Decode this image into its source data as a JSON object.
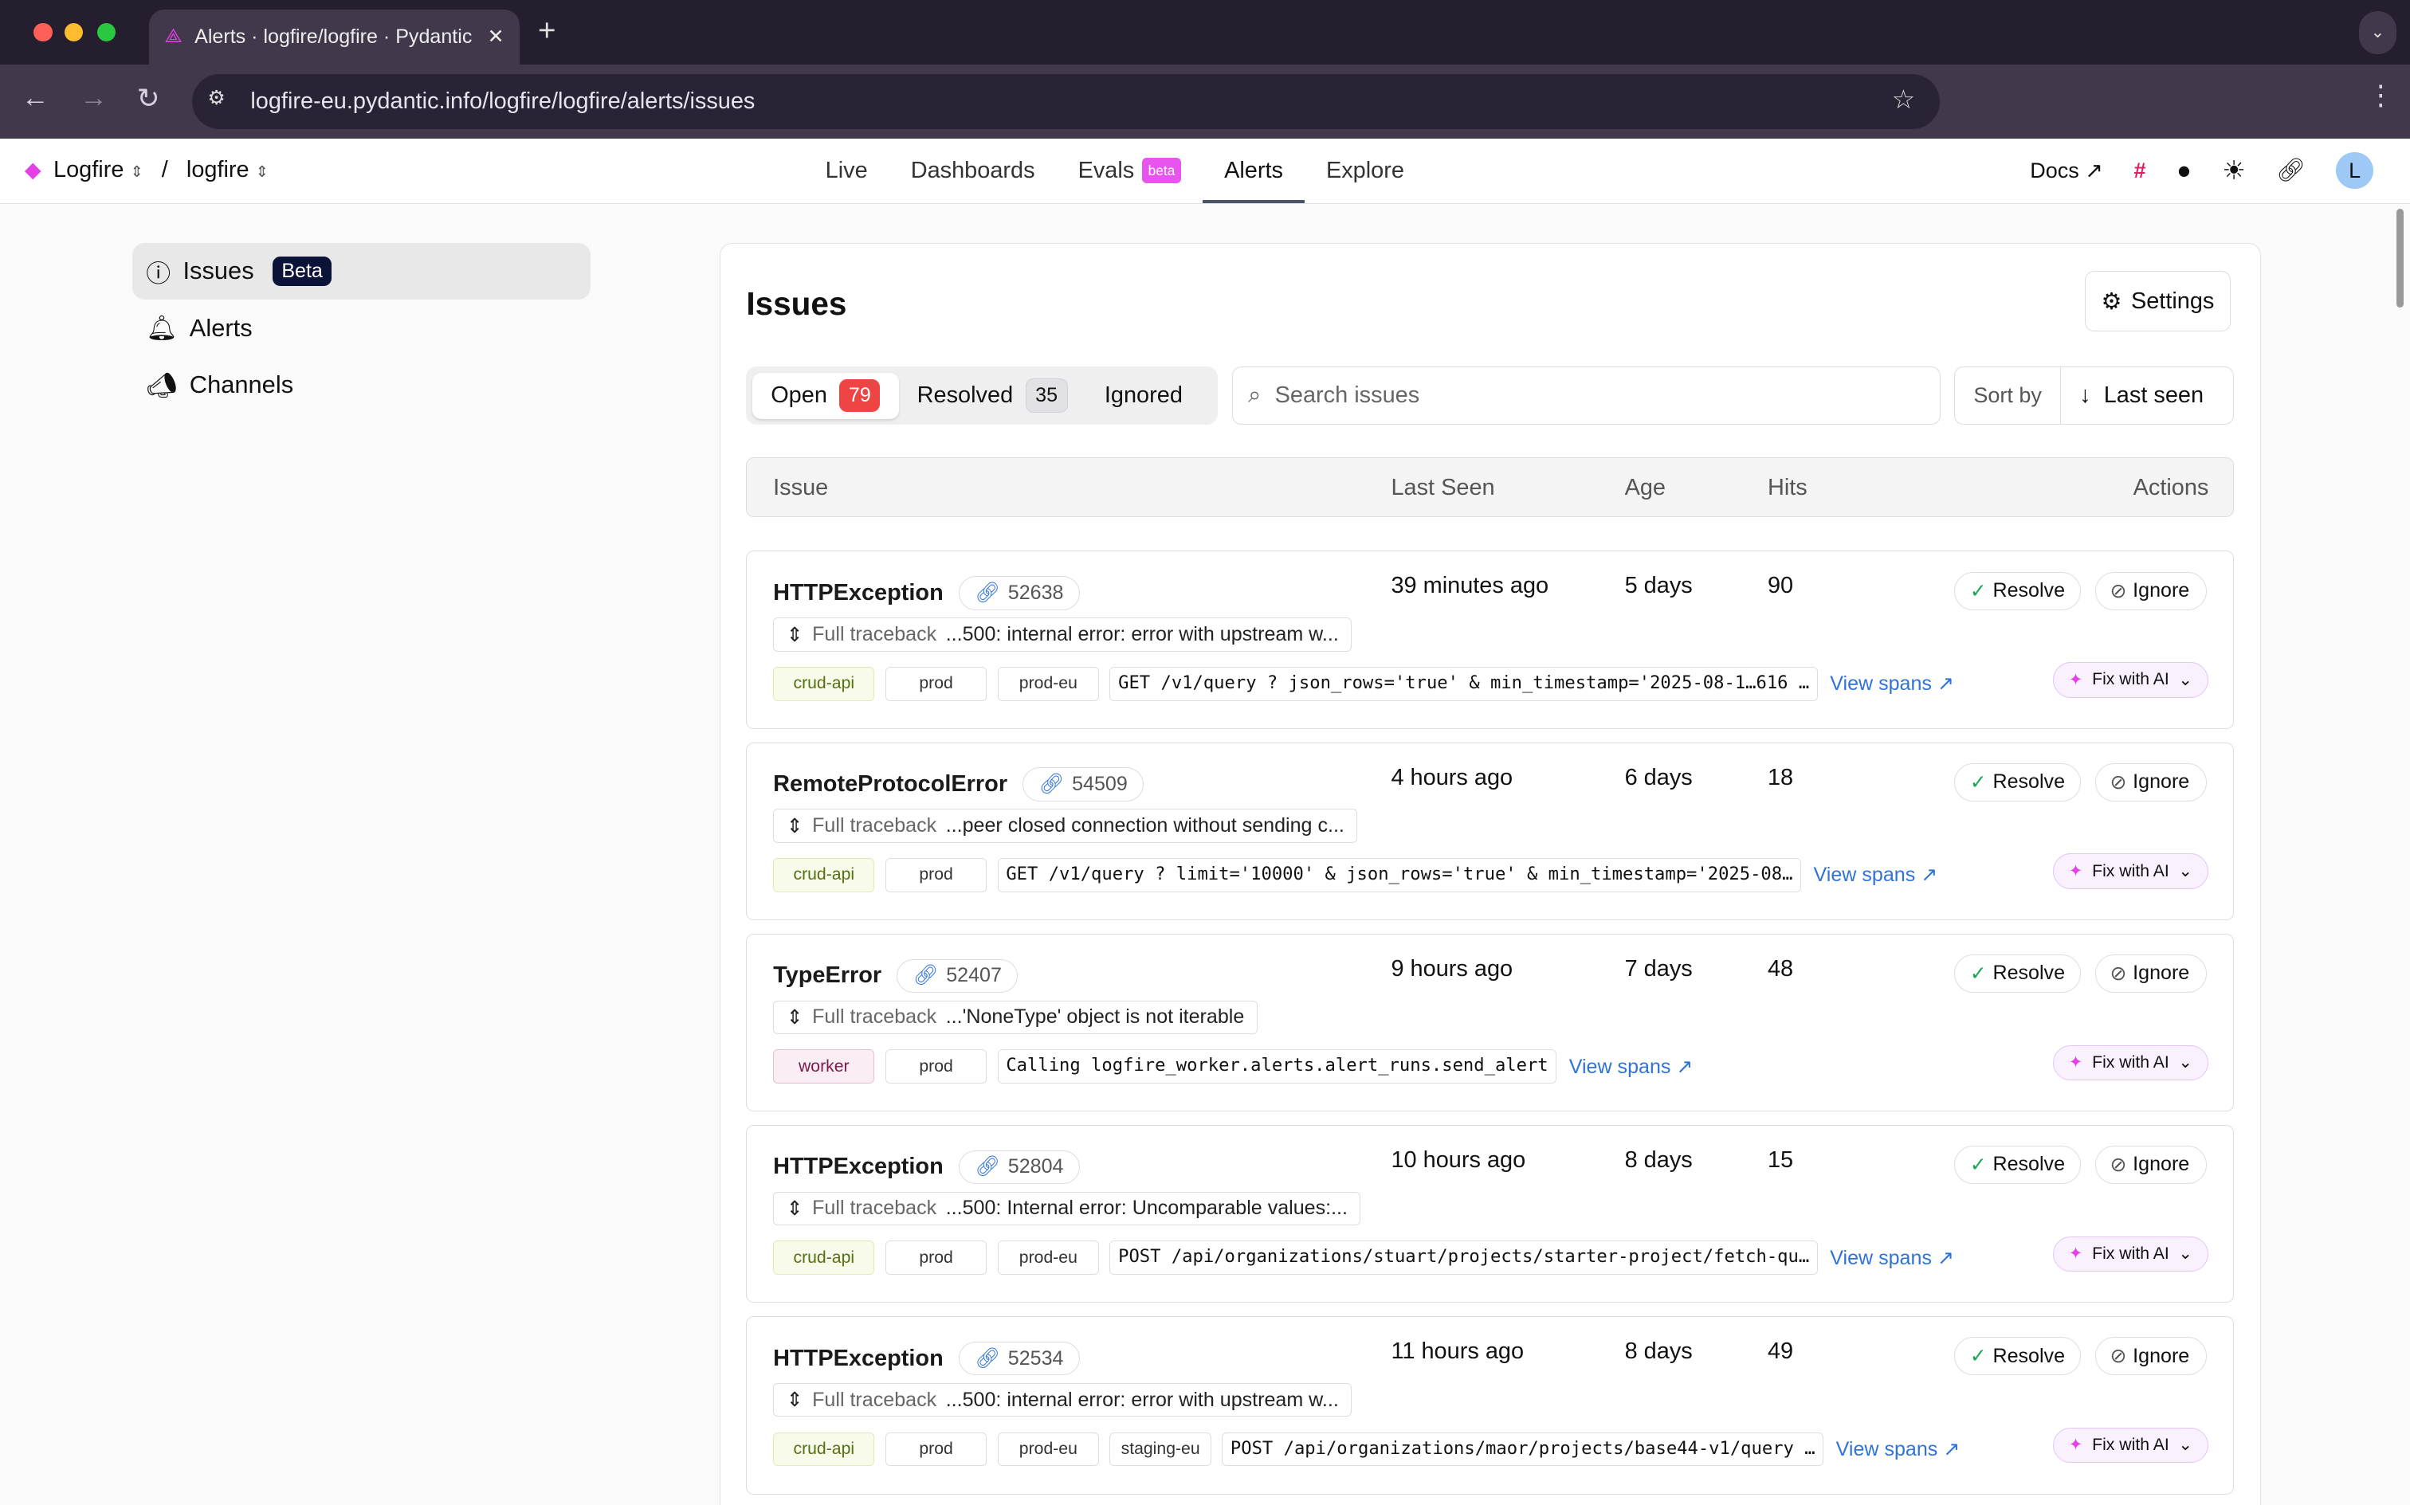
{
  "browser": {
    "tab_title": "Alerts · logfire/logfire · Pydantic Logfire",
    "url": "logfire-eu.pydantic.info/logfire/logfire/alerts/issues"
  },
  "header": {
    "org": "Logfire",
    "project": "logfire",
    "separator": "/",
    "nav": [
      {
        "label": "Live"
      },
      {
        "label": "Dashboards"
      },
      {
        "label": "Evals",
        "badge": "beta"
      },
      {
        "label": "Alerts",
        "active": true
      },
      {
        "label": "Explore"
      }
    ],
    "docs": "Docs",
    "avatar": "L"
  },
  "sidebar": {
    "items": [
      {
        "label": "Issues",
        "badge": "Beta",
        "icon": "alert-circle-icon",
        "selected": true
      },
      {
        "label": "Alerts",
        "icon": "bell-icon"
      },
      {
        "label": "Channels",
        "icon": "megaphone-icon"
      }
    ]
  },
  "main": {
    "title": "Issues",
    "settings": "Settings",
    "tabs": [
      {
        "label": "Open",
        "count": "79"
      },
      {
        "label": "Resolved",
        "count": "35"
      },
      {
        "label": "Ignored"
      }
    ],
    "search_placeholder": "Search issues",
    "sort_label": "Sort by",
    "sort_value": "Last seen",
    "columns": {
      "issue": "Issue",
      "last_seen": "Last Seen",
      "age": "Age",
      "hits": "Hits",
      "actions": "Actions"
    },
    "resolve": "Resolve",
    "ignore": "Ignore",
    "fix_ai": "Fix with AI",
    "view_spans": "View spans",
    "traceback": "Full traceback",
    "rows": [
      {
        "title": "HTTPException",
        "id": "52638",
        "traceback": "...500: internal error: error with upstream w...",
        "tags": [
          "crud-api",
          "prod",
          "prod-eu"
        ],
        "query": "GET /v1/query ? json_rows='true' & min_timestamp='2025-08-1…616 …",
        "last_seen": "39 minutes ago",
        "age": "5 days",
        "hits": "90",
        "resolvable": true
      },
      {
        "title": "RemoteProtocolError",
        "id": "54509",
        "traceback": "...peer closed connection without sending c...",
        "tags": [
          "crud-api",
          "prod"
        ],
        "query": "GET /v1/query ? limit='10000' & json_rows='true' & min_timestamp='2025-08…",
        "last_seen": "4 hours ago",
        "age": "6 days",
        "hits": "18",
        "resolvable": true
      },
      {
        "title": "TypeError",
        "id": "52407",
        "traceback": "...'NoneType' object is not iterable",
        "tags": [
          "worker",
          "prod"
        ],
        "query": "Calling logfire_worker.alerts.alert_runs.send_alert",
        "last_seen": "9 hours ago",
        "age": "7 days",
        "hits": "48",
        "resolvable": true
      },
      {
        "title": "HTTPException",
        "id": "52804",
        "traceback": "...500: Internal error: Uncomparable values:...",
        "tags": [
          "crud-api",
          "prod",
          "prod-eu"
        ],
        "query": "POST /api/organizations/stuart/projects/starter-project/fetch-qu…",
        "last_seen": "10 hours ago",
        "age": "8 days",
        "hits": "15",
        "resolvable": true
      },
      {
        "title": "HTTPException",
        "id": "52534",
        "traceback": "...500: internal error: error with upstream w...",
        "tags": [
          "crud-api",
          "prod",
          "prod-eu",
          "staging-eu"
        ],
        "query": "POST /api/organizations/maor/projects/base44-v1/query …",
        "last_seen": "11 hours ago",
        "age": "8 days",
        "hits": "49",
        "resolvable": true
      }
    ]
  },
  "colors": {
    "accent": "#e855ee",
    "open_count": "#ef4444",
    "link": "#2f73d8",
    "resolve_check": "#22a559",
    "beta_sidebar": "#0c1338"
  }
}
